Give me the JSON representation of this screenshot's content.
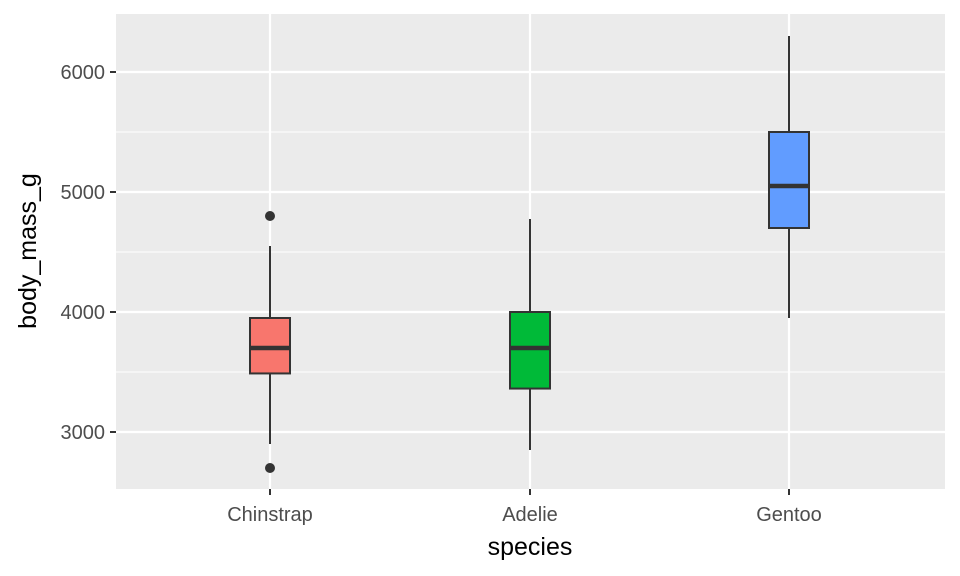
{
  "chart_data": {
    "type": "boxplot",
    "xlabel": "species",
    "ylabel": "body_mass_g",
    "categories": [
      "Chinstrap",
      "Adelie",
      "Gentoo"
    ],
    "ylim": [
      2530,
      6470
    ],
    "yticks": [
      3000,
      4000,
      5000,
      6000
    ],
    "boxes": [
      {
        "category": "Chinstrap",
        "whisker_low": 2900,
        "q1": 3488,
        "median": 3700,
        "q3": 3950,
        "whisker_high": 4550,
        "outliers": [
          4800,
          2700
        ],
        "color": "#F8766D"
      },
      {
        "category": "Adelie",
        "whisker_low": 2850,
        "q1": 3362,
        "median": 3700,
        "q3": 4000,
        "whisker_high": 4775,
        "outliers": [],
        "color": "#00BA38"
      },
      {
        "category": "Gentoo",
        "whisker_low": 3950,
        "q1": 4700,
        "median": 5050,
        "q3": 5500,
        "whisker_high": 6300,
        "outliers": [],
        "color": "#619CFF"
      }
    ],
    "grid": true,
    "legend": "none",
    "panel_color": "#EBEBEB",
    "grid_color": "#FFFFFF"
  }
}
